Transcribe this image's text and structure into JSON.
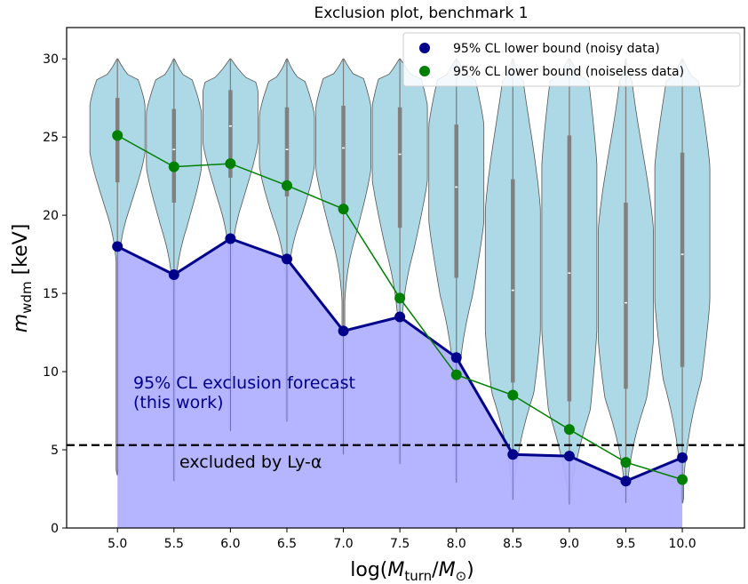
{
  "chart_data": {
    "type": "violin",
    "title": "Exclusion plot, benchmark 1",
    "xlabel": "log(M_turn/M_⊙)",
    "ylabel": "m_wdm [keV]",
    "xlim": [
      4.55,
      10.55
    ],
    "ylim": [
      0,
      32
    ],
    "x": [
      5.0,
      5.5,
      6.0,
      6.5,
      7.0,
      7.5,
      8.0,
      8.5,
      9.0,
      9.5,
      10.0
    ],
    "x_tick_labels": [
      "5.0",
      "5.5",
      "6.0",
      "6.5",
      "7.0",
      "7.5",
      "8.0",
      "8.5",
      "9.0",
      "9.5",
      "10.0"
    ],
    "y_ticks": [
      0,
      5,
      10,
      15,
      20,
      25,
      30
    ],
    "y_tick_labels": [
      "0",
      "5",
      "10",
      "15",
      "20",
      "25",
      "30"
    ],
    "grid": false,
    "legend_placement": "top-right",
    "series": [
      {
        "name": "95% CL lower bound (noisy data)",
        "color": "#00008b",
        "values": [
          18.0,
          16.2,
          18.5,
          17.2,
          12.6,
          13.5,
          10.9,
          4.7,
          4.6,
          3.0,
          4.5
        ]
      },
      {
        "name": "95% CL lower bound (noiseless data)",
        "color": "#008000",
        "values": [
          25.1,
          23.1,
          23.3,
          21.9,
          20.4,
          14.7,
          9.8,
          8.5,
          6.3,
          4.2,
          3.1
        ]
      }
    ],
    "violins": [
      {
        "x": 5.0,
        "min": 3.4,
        "max": 30.0,
        "q1": 22.1,
        "median": 25.0,
        "q3": 27.5
      },
      {
        "x": 5.5,
        "min": 3.0,
        "max": 30.0,
        "q1": 20.8,
        "median": 24.2,
        "q3": 26.8
      },
      {
        "x": 6.0,
        "min": 6.2,
        "max": 30.0,
        "q1": 22.4,
        "median": 25.7,
        "q3": 28.0
      },
      {
        "x": 6.5,
        "min": 6.8,
        "max": 30.0,
        "q1": 21.2,
        "median": 24.2,
        "q3": 26.9
      },
      {
        "x": 7.0,
        "min": 4.7,
        "max": 30.0,
        "q1": 20.4,
        "median": 24.3,
        "q3": 27.0
      },
      {
        "x": 7.5,
        "min": 4.1,
        "max": 30.0,
        "q1": 19.2,
        "median": 23.9,
        "q3": 26.9
      },
      {
        "x": 8.0,
        "min": 2.9,
        "max": 30.0,
        "q1": 16.0,
        "median": 21.8,
        "q3": 25.8
      },
      {
        "x": 8.5,
        "min": 1.8,
        "max": 30.0,
        "q1": 9.3,
        "median": 15.2,
        "q3": 22.3
      },
      {
        "x": 9.0,
        "min": 1.5,
        "max": 30.0,
        "q1": 8.1,
        "median": 16.3,
        "q3": 25.1
      },
      {
        "x": 9.5,
        "min": 1.6,
        "max": 30.0,
        "q1": 8.9,
        "median": 14.4,
        "q3": 20.8
      },
      {
        "x": 10.0,
        "min": 1.6,
        "max": 30.0,
        "q1": 10.3,
        "median": 17.5,
        "q3": 24.0
      }
    ],
    "violin_fill": "#add8e6",
    "exclusion_fill": "#b0b0ff",
    "exclusion_label": "95% CL exclusion forecast\n(this work)",
    "exclusion_label_color": "#00008b",
    "lya_line": {
      "y": 5.3,
      "label": "excluded by Ly-α",
      "style": "dashed",
      "color": "#000000"
    }
  }
}
